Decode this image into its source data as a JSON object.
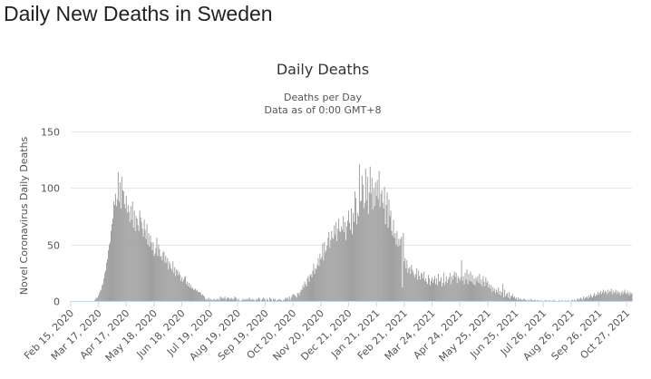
{
  "page": {
    "heading": "Daily New Deaths in Sweden"
  },
  "chart_data": {
    "type": "bar",
    "title": "Daily Deaths",
    "subtitle_lines": [
      "Deaths per Day",
      "Data as of 0:00 GMT+8"
    ],
    "xlabel": "",
    "ylabel": "Novel Coronavirus Daily Deaths",
    "ylim": [
      0,
      150
    ],
    "yticks": [
      0,
      50,
      100,
      150
    ],
    "grid": true,
    "legend": "none",
    "bar_color": "#a0a0a0",
    "date_range": [
      "Feb 15, 2020",
      "Nov 2, 2021"
    ],
    "xtick_labels": [
      "Feb 15, 2020",
      "Mar 17, 2020",
      "Apr 17, 2020",
      "May 18, 2020",
      "Jun 18, 2020",
      "Jul 19, 2020",
      "Aug 19, 2020",
      "Sep 19, 2020",
      "Oct 20, 2020",
      "Nov 20, 2020",
      "Dec 21, 2020",
      "Jan 21, 2021",
      "Feb 21, 2021",
      "Mar 24, 2021",
      "Apr 24, 2021",
      "May 25, 2021",
      "Jun 25, 2021",
      "Jul 26, 2021",
      "Aug 26, 2021",
      "Sep 26, 2021",
      "Oct 27, 2021"
    ],
    "series": [
      {
        "values": [
          0,
          0,
          0,
          0,
          0,
          0,
          0,
          0,
          0,
          0,
          0,
          0,
          0,
          0,
          0,
          0,
          0,
          0,
          0,
          0,
          0,
          0,
          0,
          0,
          0,
          0,
          0,
          1,
          2,
          3,
          3,
          5,
          7,
          9,
          10,
          14,
          15,
          20,
          25,
          27,
          34,
          37,
          45,
          50,
          52,
          62,
          68,
          73,
          88,
          85,
          95,
          84,
          90,
          114,
          88,
          105,
          82,
          110,
          98,
          97,
          86,
          82,
          93,
          78,
          85,
          79,
          70,
          84,
          72,
          88,
          65,
          80,
          62,
          75,
          73,
          67,
          62,
          80,
          74,
          70,
          64,
          57,
          72,
          63,
          55,
          68,
          50,
          60,
          48,
          58,
          52,
          45,
          52,
          40,
          42,
          47,
          56,
          40,
          50,
          46,
          39,
          40,
          36,
          43,
          44,
          34,
          40,
          34,
          38,
          28,
          35,
          33,
          29,
          27,
          35,
          25,
          30,
          22,
          28,
          27,
          23,
          26,
          23,
          18,
          21,
          17,
          19,
          21,
          22,
          15,
          17,
          13,
          16,
          12,
          14,
          11,
          12,
          10,
          10,
          11,
          9,
          10,
          8,
          8,
          8,
          7,
          5,
          6,
          5,
          4,
          2,
          1,
          2,
          1,
          3,
          1,
          2,
          1,
          1,
          1,
          2,
          1,
          1,
          2,
          1,
          2,
          1,
          4,
          3,
          2,
          3,
          2,
          4,
          1,
          2,
          3,
          3,
          2,
          1,
          3,
          2,
          1,
          2,
          4,
          3,
          2,
          0,
          2,
          1,
          0,
          0,
          1,
          2,
          1,
          1,
          2,
          1,
          2,
          1,
          3,
          2,
          1,
          1,
          2,
          1,
          1,
          0,
          2,
          1,
          2,
          3,
          2,
          0,
          1,
          2,
          3,
          2,
          1,
          0,
          2,
          1,
          0,
          3,
          2,
          1,
          0,
          2,
          1,
          2,
          0,
          1,
          1,
          1,
          2,
          1,
          1,
          0,
          1,
          1,
          2,
          3,
          2,
          3,
          1,
          4,
          1,
          3,
          5,
          6,
          6,
          5,
          4,
          3,
          7,
          7,
          5,
          8,
          10,
          10,
          14,
          12,
          17,
          15,
          13,
          20,
          22,
          17,
          23,
          24,
          21,
          27,
          33,
          24,
          29,
          28,
          32,
          38,
          31,
          42,
          37,
          39,
          51,
          36,
          52,
          43,
          45,
          49,
          56,
          61,
          47,
          54,
          62,
          56,
          55,
          67,
          59,
          70,
          53,
          64,
          73,
          62,
          61,
          66,
          63,
          75,
          61,
          70,
          54,
          66,
          71,
          80,
          69,
          63,
          82,
          59,
          78,
          70,
          97,
          91,
          68,
          78,
          75,
          121,
          88,
          89,
          111,
          103,
          82,
          87,
          117,
          89,
          110,
          77,
          96,
          119,
          95,
          109,
          81,
          100,
          84,
          105,
          93,
          107,
          90,
          115,
          83,
          95,
          98,
          87,
          82,
          101,
          68,
          85,
          96,
          65,
          90,
          75,
          80,
          62,
          58,
          72,
          56,
          60,
          50,
          62,
          48,
          55,
          49,
          55,
          57,
          12,
          60,
          35,
          38,
          29,
          36,
          25,
          29,
          30,
          24,
          32,
          28,
          26,
          23,
          21,
          24,
          29,
          19,
          27,
          22,
          19,
          25,
          24,
          20,
          26,
          18,
          20,
          17,
          15,
          23,
          20,
          14,
          18,
          21,
          16,
          19,
          22,
          15,
          20,
          14,
          24,
          17,
          18,
          21,
          13,
          16,
          25,
          14,
          17,
          22,
          16,
          19,
          21,
          25,
          15,
          22,
          19,
          23,
          26,
          21,
          25,
          16,
          22,
          20,
          18,
          21,
          36,
          18,
          22,
          15,
          25,
          19,
          28,
          15,
          24,
          18,
          26,
          17,
          23,
          15,
          20,
          14,
          21,
          18,
          22,
          16,
          24,
          15,
          19,
          13,
          22,
          17,
          13,
          21,
          16,
          18,
          12,
          15,
          11,
          14,
          8,
          12,
          9,
          11,
          7,
          10,
          8,
          12,
          6,
          9,
          5,
          8,
          15,
          3,
          10,
          4,
          6,
          7,
          3,
          8,
          2,
          5,
          4,
          6,
          3,
          4,
          2,
          3,
          1,
          3,
          1,
          2,
          2,
          1,
          1,
          2,
          2,
          1,
          1,
          0,
          1,
          1,
          0,
          2,
          1,
          1,
          0,
          1,
          1,
          0,
          1,
          0,
          1,
          0,
          0,
          1,
          0,
          0,
          0,
          1,
          0,
          1,
          0,
          0,
          1,
          0,
          0,
          0,
          1,
          0,
          1,
          0,
          0,
          0,
          0,
          1,
          0,
          0,
          1,
          0,
          0,
          0,
          1,
          0,
          0,
          1,
          0,
          0,
          0,
          1,
          1,
          0,
          1,
          1,
          0,
          2,
          2,
          1,
          2,
          3,
          2,
          1,
          4,
          2,
          3,
          3,
          4,
          2,
          5,
          3,
          6,
          4,
          3,
          5,
          7,
          4,
          6,
          5,
          8,
          6,
          7,
          9,
          6,
          8,
          10,
          7,
          9,
          8,
          6,
          10,
          7,
          9,
          8,
          11,
          6,
          9,
          7,
          8,
          10,
          6,
          9,
          7,
          8,
          5,
          7,
          9,
          6,
          8,
          10,
          7,
          6,
          9,
          7,
          5,
          8,
          6,
          7,
          4,
          6,
          5,
          7,
          4,
          6,
          5,
          3,
          5,
          4,
          3,
          3,
          4
        ]
      }
    ]
  }
}
